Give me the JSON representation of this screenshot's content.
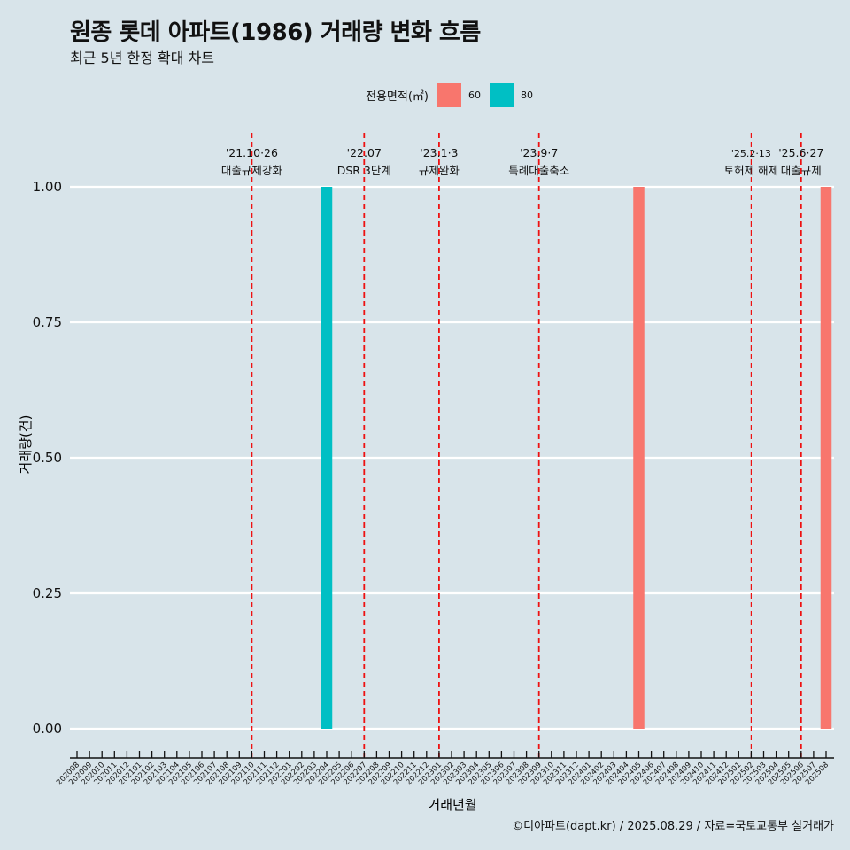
{
  "chart_data": {
    "type": "bar",
    "title": "원종 롯데 아파트(1986) 거래량 변화 흐름",
    "subtitle": "최근 5년 한정 확대 차트",
    "xlabel": "거래년월",
    "ylabel": "거래량(건)",
    "ylim": [
      0,
      1
    ],
    "yticks": [
      "0.00",
      "0.25",
      "0.50",
      "0.75",
      "1.00"
    ],
    "ytick_values": [
      0,
      0.25,
      0.5,
      0.75,
      1.0
    ],
    "categories": [
      "202008",
      "202009",
      "202010",
      "202011",
      "202012",
      "202101",
      "202102",
      "202103",
      "202104",
      "202105",
      "202106",
      "202107",
      "202108",
      "202109",
      "202110",
      "202111",
      "202112",
      "202201",
      "202202",
      "202203",
      "202204",
      "202205",
      "202206",
      "202207",
      "202208",
      "202209",
      "202210",
      "202211",
      "202212",
      "202301",
      "202302",
      "202303",
      "202304",
      "202305",
      "202306",
      "202307",
      "202308",
      "202309",
      "202310",
      "202311",
      "202312",
      "202401",
      "202402",
      "202403",
      "202404",
      "202405",
      "202406",
      "202407",
      "202408",
      "202409",
      "202410",
      "202411",
      "202412",
      "202501",
      "202502",
      "202503",
      "202504",
      "202505",
      "202506",
      "202507",
      "202508"
    ],
    "legend": {
      "title": "전용면적(㎡)",
      "position": "top",
      "entries": [
        {
          "name": "60",
          "color": "#f8766d"
        },
        {
          "name": "80",
          "color": "#00bfc4"
        }
      ]
    },
    "series": [
      {
        "name": "60",
        "color": "#f8766d",
        "points": [
          {
            "x": "202405",
            "y": 1
          },
          {
            "x": "202508",
            "y": 1
          }
        ]
      },
      {
        "name": "80",
        "color": "#00bfc4",
        "points": [
          {
            "x": "202204",
            "y": 1
          }
        ]
      }
    ],
    "annotations": [
      {
        "x": "202110",
        "date": "'21.10·26",
        "label": "대출규제강화",
        "thin": false
      },
      {
        "x": "202207",
        "date": "'22.07",
        "label": "DSR 3단계",
        "thin": false
      },
      {
        "x": "202301",
        "date": "'23.1·3",
        "label": "규제완화",
        "thin": false
      },
      {
        "x": "202309",
        "date": "'23.9·7",
        "label": "특례대출축소",
        "thin": false
      },
      {
        "x": "202502",
        "date": "'25.2·13",
        "label": "토허제 해제",
        "thin": true
      },
      {
        "x": "202506",
        "date": "'25.6·27",
        "label": "대출규제",
        "thin": false
      }
    ],
    "grid": true
  },
  "caption": "©디아파트(dapt.kr) / 2025.08.29 / 자료=국토교통부 실거래가",
  "colors": {
    "background": "#d8e4ea",
    "grid": "#ffffff",
    "annotation_line": "#ee1111"
  }
}
